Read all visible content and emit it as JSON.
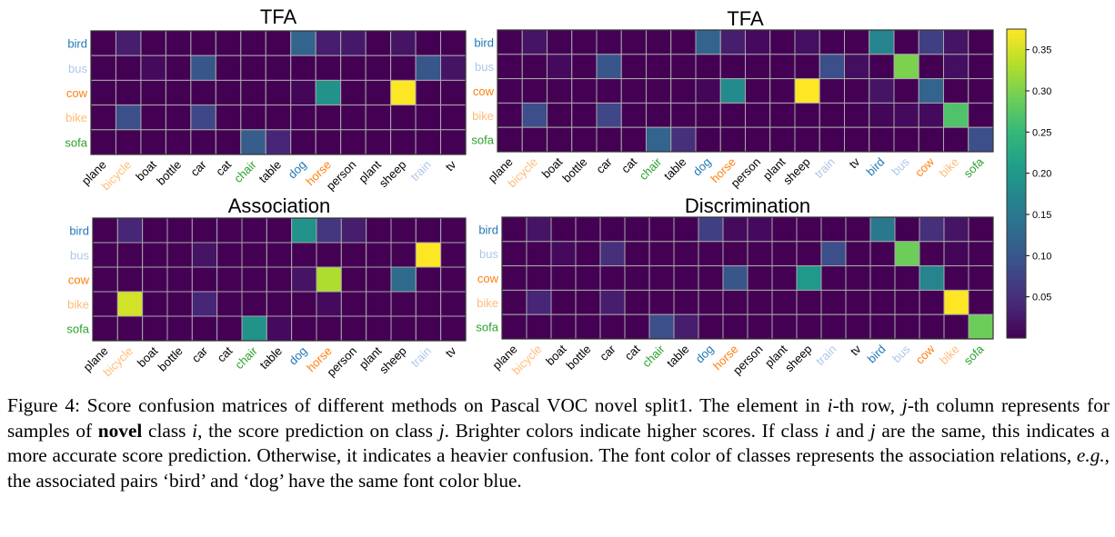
{
  "chart_data": [
    {
      "type": "heatmap",
      "title": "TFA",
      "rows": [
        "bird",
        "bus",
        "cow",
        "bike",
        "sofa"
      ],
      "columns": [
        "plane",
        "bicycle",
        "boat",
        "bottle",
        "car",
        "cat",
        "chair",
        "table",
        "dog",
        "horse",
        "person",
        "plant",
        "sheep",
        "train",
        "tv"
      ],
      "values": [
        [
          0,
          0.03,
          0,
          0,
          0,
          0,
          0,
          0,
          0.12,
          0.03,
          0.025,
          0,
          0.02,
          0,
          0
        ],
        [
          0,
          0,
          0.01,
          0,
          0.1,
          0,
          0,
          0,
          0,
          0,
          0,
          0,
          0,
          0.1,
          0.02
        ],
        [
          0,
          0,
          0,
          0,
          0,
          0,
          0,
          0,
          0.005,
          0.19,
          0,
          0,
          0.375,
          0,
          0
        ],
        [
          0,
          0.09,
          0,
          0,
          0.08,
          0,
          0,
          0,
          0,
          0,
          0,
          0,
          0,
          0,
          0
        ],
        [
          0,
          0,
          0,
          0,
          0,
          0,
          0.11,
          0.04,
          0,
          0,
          0,
          0,
          0,
          0,
          0
        ]
      ]
    },
    {
      "type": "heatmap",
      "title": "TFA",
      "rows": [
        "bird",
        "bus",
        "cow",
        "bike",
        "sofa"
      ],
      "columns": [
        "plane",
        "bicycle",
        "boat",
        "bottle",
        "car",
        "cat",
        "chair",
        "table",
        "dog",
        "horse",
        "person",
        "plant",
        "sheep",
        "train",
        "tv",
        "bird",
        "bus",
        "cow",
        "bike",
        "sofa"
      ],
      "values": [
        [
          0,
          0.02,
          0,
          0,
          0,
          0,
          0,
          0,
          0.12,
          0.03,
          0.01,
          0,
          0.015,
          0,
          0,
          0.17,
          0,
          0.07,
          0.02,
          0
        ],
        [
          0,
          0,
          0.01,
          0,
          0.1,
          0,
          0,
          0,
          0,
          0,
          0,
          0,
          0,
          0.09,
          0.015,
          0,
          0.3,
          0,
          0.015,
          0
        ],
        [
          0,
          0,
          0,
          0,
          0,
          0,
          0,
          0,
          0.005,
          0.18,
          0,
          0,
          0.375,
          0,
          0,
          0.02,
          0,
          0.12,
          0,
          0
        ],
        [
          0,
          0.09,
          0,
          0,
          0.08,
          0,
          0,
          0,
          0,
          0,
          0,
          0,
          0,
          0,
          0,
          0.005,
          0.01,
          0.01,
          0.27,
          0
        ],
        [
          0,
          0,
          0,
          0,
          0,
          0,
          0.12,
          0.05,
          0,
          0,
          0,
          0,
          0,
          0,
          0,
          0,
          0,
          0,
          0,
          0.09
        ]
      ]
    },
    {
      "type": "heatmap",
      "title": "Association",
      "rows": [
        "bird",
        "bus",
        "cow",
        "bike",
        "sofa"
      ],
      "columns": [
        "plane",
        "bicycle",
        "boat",
        "bottle",
        "car",
        "cat",
        "chair",
        "table",
        "dog",
        "horse",
        "person",
        "plant",
        "sheep",
        "train",
        "tv"
      ],
      "values": [
        [
          0,
          0.04,
          0,
          0,
          0,
          0,
          0,
          0,
          0.19,
          0.06,
          0.03,
          0,
          0,
          0,
          0
        ],
        [
          0,
          0,
          0,
          0,
          0.02,
          0,
          0,
          0,
          0,
          0,
          0,
          0,
          0,
          0.375,
          0
        ],
        [
          0,
          0,
          0,
          0,
          0,
          0,
          0,
          0,
          0.02,
          0.33,
          0,
          0,
          0.13,
          0,
          0
        ],
        [
          0,
          0.35,
          0,
          0,
          0.04,
          0,
          0,
          0,
          0,
          0.01,
          0,
          0,
          0,
          0,
          0
        ],
        [
          0,
          0,
          0,
          0,
          0,
          0,
          0.19,
          0.01,
          0,
          0,
          0,
          0,
          0,
          0,
          0
        ]
      ]
    },
    {
      "type": "heatmap",
      "title": "Discrimination",
      "rows": [
        "bird",
        "bus",
        "cow",
        "bike",
        "sofa"
      ],
      "columns": [
        "plane",
        "bicycle",
        "boat",
        "bottle",
        "car",
        "cat",
        "chair",
        "table",
        "dog",
        "horse",
        "person",
        "plant",
        "sheep",
        "train",
        "tv",
        "bird",
        "bus",
        "cow",
        "bike",
        "sofa"
      ],
      "values": [
        [
          0,
          0.02,
          0,
          0,
          0,
          0,
          0,
          0,
          0.07,
          0.01,
          0.01,
          0,
          0,
          0,
          0,
          0.15,
          0,
          0.05,
          0.02,
          0
        ],
        [
          0,
          0,
          0.01,
          0,
          0.05,
          0,
          0,
          0,
          0,
          0,
          0,
          0,
          0,
          0.09,
          0,
          0,
          0.29,
          0,
          0.005,
          0
        ],
        [
          0,
          0,
          0,
          0,
          0,
          0,
          0,
          0,
          0,
          0.1,
          0,
          0,
          0.2,
          0,
          0,
          0,
          0,
          0.17,
          0,
          0
        ],
        [
          0,
          0.04,
          0,
          0,
          0.03,
          0,
          0,
          0,
          0,
          0,
          0,
          0,
          0,
          0,
          0,
          0,
          0,
          0,
          0.375,
          0
        ],
        [
          0,
          0,
          0,
          0,
          0,
          0,
          0.09,
          0.03,
          0,
          0,
          0,
          0,
          0,
          0,
          0,
          0,
          0,
          0,
          0,
          0.29
        ]
      ]
    }
  ],
  "colorbar": {
    "colormap": "viridis",
    "range": [
      0,
      0.375
    ],
    "ticks": [
      "0.05",
      "0.10",
      "0.15",
      "0.20",
      "0.25",
      "0.30",
      "0.35"
    ]
  },
  "label_colors": {
    "bird": "#1f77b4",
    "dog": "#1f77b4",
    "bus": "#aec7e8",
    "train": "#aec7e8",
    "cow": "#ff7f0e",
    "horse": "#ff7f0e",
    "bike": "#ffbb78",
    "bicycle": "#ffbb78",
    "sofa": "#2ca02c",
    "chair": "#2ca02c"
  },
  "caption": [
    {
      "t": "Figure 4: Score confusion matrices of different methods on Pascal VOC novel split1. The element in ",
      "s": ""
    },
    {
      "t": "i",
      "s": "it"
    },
    {
      "t": "-th row, ",
      "s": ""
    },
    {
      "t": "j",
      "s": "it"
    },
    {
      "t": "-th column represents for samples of ",
      "s": ""
    },
    {
      "t": "novel",
      "s": "bd"
    },
    {
      "t": " class ",
      "s": ""
    },
    {
      "t": "i",
      "s": "it"
    },
    {
      "t": ", the score prediction on class ",
      "s": ""
    },
    {
      "t": "j",
      "s": "it"
    },
    {
      "t": ". Brighter colors indicate higher scores. If class ",
      "s": ""
    },
    {
      "t": "i",
      "s": "it"
    },
    {
      "t": " and ",
      "s": ""
    },
    {
      "t": "j",
      "s": "it"
    },
    {
      "t": " are the same, this indicates a more accurate score prediction. Otherwise, it indicates a heavier confusion. The font color of classes represents the association relations, ",
      "s": ""
    },
    {
      "t": "e.g.",
      "s": "it"
    },
    {
      "t": ", the associated pairs ‘bird’ and ‘dog’ have the same font color blue.",
      "s": ""
    }
  ]
}
